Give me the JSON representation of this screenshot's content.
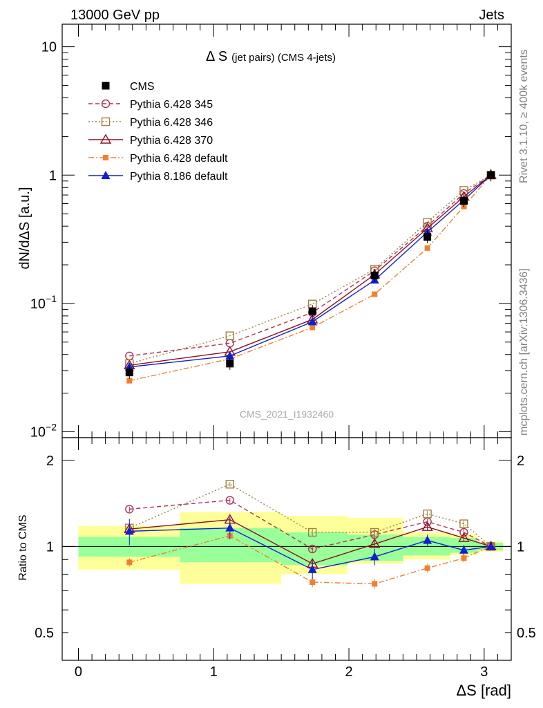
{
  "header": {
    "left": "13000 GeV pp",
    "right": "Jets"
  },
  "side_text": {
    "top": "Rivet 3.1.10, ≥ 400k events",
    "bottom": "mcplots.cern.ch [arXiv:1306.3436]"
  },
  "chart_data": {
    "type": "line",
    "title_main": "Δ S",
    "title_sub": "(jet pairs) (CMS 4-jets)",
    "watermark": "CMS_2021_I1932460",
    "xlabel": "ΔS [rad]",
    "ylabel": "dN/dΔS [a.u.]",
    "ratio_ylabel": "Ratio to CMS",
    "xlim": [
      -0.12,
      3.2
    ],
    "ylim": [
      0.009,
      15
    ],
    "yscale": "log",
    "ratio_ylim": [
      0.4,
      2.4
    ],
    "ratio_yscale": "log",
    "x_ticks": [
      "0",
      "1",
      "2",
      "3"
    ],
    "y_ticks": [
      {
        "value": 10,
        "label": "10"
      },
      {
        "value": 1,
        "label": "1"
      },
      {
        "value": 0.1,
        "base": "10",
        "exp": "−1"
      },
      {
        "value": 0.01,
        "base": "10",
        "exp": "−2"
      }
    ],
    "ratio_ticks": [
      {
        "value": 2,
        "label": "2"
      },
      {
        "value": 1,
        "label": "1"
      },
      {
        "value": 0.5,
        "label": "0.5"
      }
    ],
    "bin_edges": [
      0,
      0.75,
      1.5,
      1.99,
      2.4,
      2.75,
      2.95,
      3.14
    ],
    "x": [
      0.377,
      1.12,
      1.73,
      2.19,
      2.58,
      2.85,
      3.05
    ],
    "data": {
      "name": "CMS",
      "values": [
        0.029,
        0.034,
        0.087,
        0.165,
        0.33,
        0.63,
        1.0
      ],
      "band_inner": [
        [
          0.92,
          1.08
        ],
        [
          0.88,
          1.16
        ],
        [
          0.86,
          1.12
        ],
        [
          0.89,
          1.1
        ],
        [
          0.93,
          1.08
        ],
        [
          0.95,
          1.07
        ],
        [
          0.97,
          1.03
        ]
      ],
      "band_outer": [
        [
          0.83,
          1.18
        ],
        [
          0.74,
          1.32
        ],
        [
          0.8,
          1.28
        ],
        [
          0.87,
          1.26
        ],
        [
          0.9,
          1.12
        ],
        [
          0.93,
          1.1
        ],
        [
          0.96,
          1.04
        ]
      ]
    },
    "series": [
      {
        "name": "Pythia 6.428 345",
        "color": "#b03050",
        "dash": "6,4",
        "marker": "circle-open",
        "values": [
          0.039,
          0.049,
          0.085,
          0.18,
          0.4,
          0.72,
          1.0
        ],
        "ratio": [
          1.35,
          1.45,
          0.98,
          1.1,
          1.22,
          1.12,
          1.0
        ]
      },
      {
        "name": "Pythia 6.428 346",
        "color": "#a08040",
        "dash": "2,3",
        "marker": "square-open",
        "values": [
          0.034,
          0.056,
          0.099,
          0.185,
          0.43,
          0.76,
          1.0
        ],
        "ratio": [
          1.16,
          1.65,
          1.12,
          1.12,
          1.3,
          1.2,
          1.0
        ]
      },
      {
        "name": "Pythia 6.428 370",
        "color": "#8b1020",
        "dash": "",
        "marker": "triangle-open",
        "values": [
          0.033,
          0.042,
          0.075,
          0.168,
          0.385,
          0.68,
          1.0
        ],
        "ratio": [
          1.15,
          1.24,
          0.87,
          1.02,
          1.17,
          1.07,
          1.0
        ]
      },
      {
        "name": "Pythia 6.428 default",
        "color": "#f08030",
        "dash": "8,3,2,3",
        "marker": "square-small",
        "values": [
          0.025,
          0.037,
          0.065,
          0.118,
          0.27,
          0.57,
          1.0
        ],
        "ratio": [
          0.88,
          1.09,
          0.75,
          0.74,
          0.84,
          0.91,
          1.0
        ]
      },
      {
        "name": "Pythia 8.186 default",
        "color": "#1020d0",
        "dash": "",
        "marker": "triangle-filled",
        "values": [
          0.032,
          0.039,
          0.072,
          0.152,
          0.36,
          0.64,
          1.0
        ],
        "ratio": [
          1.13,
          1.16,
          0.83,
          0.92,
          1.05,
          0.97,
          1.0
        ],
        "ratio_err": [
          0.12,
          0.1,
          0.06,
          0.06,
          0.05,
          0.04,
          0.03
        ]
      }
    ]
  }
}
